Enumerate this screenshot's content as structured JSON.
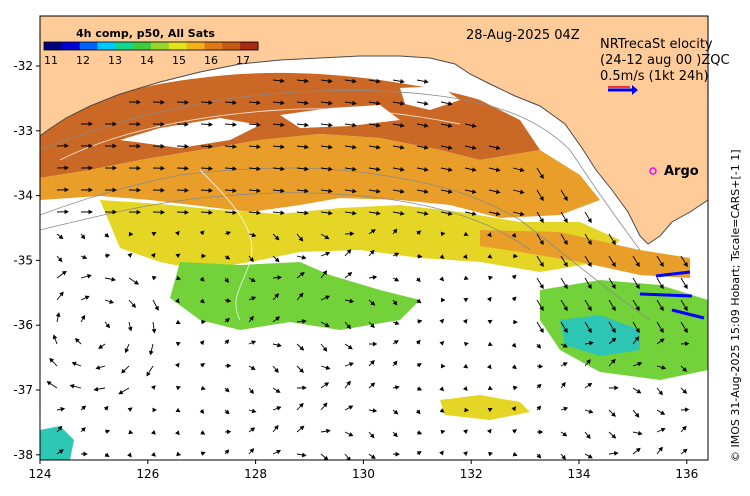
{
  "colorbar": {
    "title": "4h comp, p50, All Sats",
    "ticks": [
      "11",
      "12",
      "13",
      "14",
      "15",
      "16",
      "17"
    ],
    "colors": [
      "#00007f",
      "#0000d6",
      "#0062ff",
      "#00c9ff",
      "#14d68f",
      "#3dcc3d",
      "#99d62b",
      "#e3e31a",
      "#f2b01a",
      "#e07a16",
      "#c45a14",
      "#a82a10"
    ]
  },
  "date_label": "28-Aug-2025 04Z",
  "velocity_legend": {
    "line1": "NRTrecaSt elocity",
    "line2": "(24-12 aug 00 )ZQC",
    "line3": "0.5m/s (1kt 24h)"
  },
  "argo_label": "Argo",
  "x_ticks": [
    "124",
    "126",
    "128",
    "130",
    "132",
    "134",
    "136"
  ],
  "y_ticks": [
    "-32",
    "-33",
    "-34",
    "-35",
    "-36",
    "-37",
    "-38"
  ],
  "credit": "© IMOS 31-Aug-2025 15:09 Hobart; Tscale=CARS+[-1 1]",
  "colors": {
    "land": "#ffcc99",
    "sst_warm": "#c8601a",
    "sst_orange": "#e8991e",
    "sst_yellow": "#e4d41a",
    "sst_green": "#6ccf30",
    "sst_teal": "#22c4b0",
    "argo": "#ff00ff",
    "velocity_arrow": "#0000ff"
  }
}
